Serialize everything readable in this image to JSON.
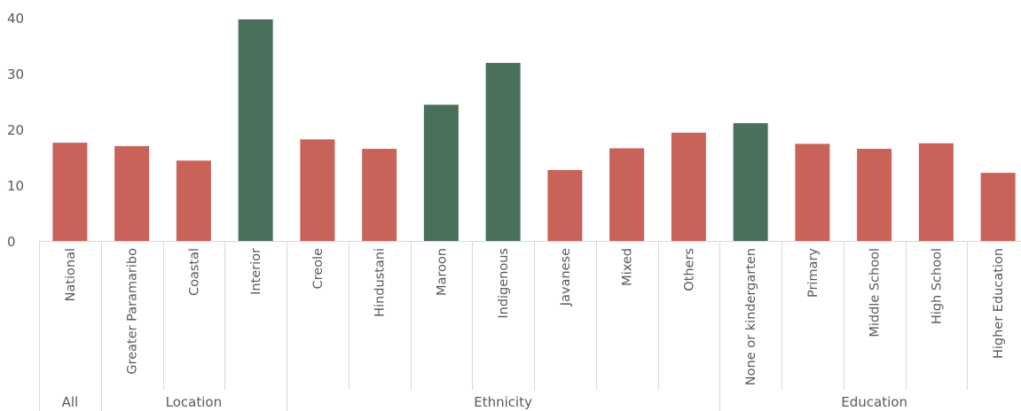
{
  "chart_data": {
    "type": "bar",
    "title": "",
    "xlabel": "",
    "ylabel": "",
    "ylim": [
      0,
      40
    ],
    "yticks": [
      0,
      10,
      20,
      30,
      40
    ],
    "grid": false,
    "colors": {
      "default": "#c96258",
      "highlight": "#48705a",
      "axis": "#d9d9d9",
      "text": "#595959"
    },
    "categories": [
      "National",
      "Greater Paramaribo",
      "Coastal",
      "Interior",
      "Creole",
      "Hindustani",
      "Maroon",
      "Indigenous",
      "Javanese",
      "Mixed",
      "Others",
      "None or kindergarten",
      "Primary",
      "Middle School",
      "High School",
      "Higher Education"
    ],
    "values": [
      17.6,
      17.0,
      14.4,
      39.7,
      18.2,
      16.5,
      24.4,
      31.9,
      12.7,
      16.6,
      19.4,
      21.1,
      17.4,
      16.5,
      17.5,
      12.2
    ],
    "highlighted": [
      false,
      false,
      false,
      true,
      false,
      false,
      true,
      true,
      false,
      false,
      false,
      true,
      false,
      false,
      false,
      false
    ],
    "groups": [
      {
        "label": "All",
        "start": 0,
        "count": 1
      },
      {
        "label": "Location",
        "start": 1,
        "count": 3
      },
      {
        "label": "Ethnicity",
        "start": 4,
        "count": 7
      },
      {
        "label": "Education",
        "start": 11,
        "count": 5
      }
    ]
  }
}
